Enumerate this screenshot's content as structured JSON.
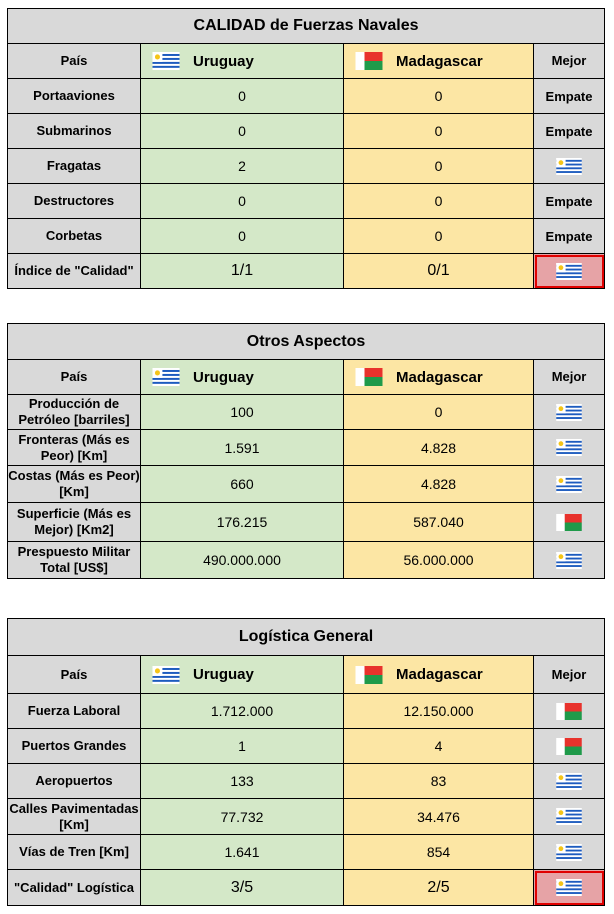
{
  "columns": {
    "country": "País",
    "uruguay": "Uruguay",
    "madagascar": "Madagascar",
    "best": "Mejor"
  },
  "flags": {
    "uruguay_icon": "uruguay-flag-icon",
    "madagascar_icon": "madagascar-flag-icon"
  },
  "colors": {
    "header": "#d9d9d9",
    "uruguay": "#d4e8c8",
    "madagascar": "#fce6a4",
    "highlight": "#e6a3a6",
    "highlight_border": "#e00000"
  },
  "tables": [
    {
      "title": "CALIDAD de Fuerzas Navales",
      "rows": [
        {
          "label": "Portaaviones",
          "uy": "0",
          "mg": "0",
          "best": "Empate"
        },
        {
          "label": "Submarinos",
          "uy": "0",
          "mg": "0",
          "best": "Empate"
        },
        {
          "label": "Fragatas",
          "uy": "2",
          "mg": "0",
          "best": "uruguay"
        },
        {
          "label": "Destructores",
          "uy": "0",
          "mg": "0",
          "best": "Empate"
        },
        {
          "label": "Corbetas",
          "uy": "0",
          "mg": "0",
          "best": "Empate"
        },
        {
          "label": "Índice de \"Calidad\"",
          "uy": "1/1",
          "mg": "0/1",
          "best": "uruguay"
        }
      ]
    },
    {
      "title": "Otros Aspectos",
      "rows": [
        {
          "label": "Producción de Petróleo [barriles]",
          "uy": "100",
          "mg": "0",
          "best": "uruguay"
        },
        {
          "label": "Fronteras (Más es Peor) [Km]",
          "uy": "1.591",
          "mg": "4.828",
          "best": "uruguay"
        },
        {
          "label": "Costas (Más es Peor) [Km]",
          "uy": "660",
          "mg": "4.828",
          "best": "uruguay"
        },
        {
          "label": "Superficie (Más es Mejor) [Km2]",
          "uy": "176.215",
          "mg": "587.040",
          "best": "madagascar"
        },
        {
          "label": "Prespuesto Militar Total [US$]",
          "uy": "490.000.000",
          "mg": "56.000.000",
          "best": "uruguay"
        }
      ]
    },
    {
      "title": "Logística General",
      "rows": [
        {
          "label": "Fuerza Laboral",
          "uy": "1.712.000",
          "mg": "12.150.000",
          "best": "madagascar"
        },
        {
          "label": "Puertos Grandes",
          "uy": "1",
          "mg": "4",
          "best": "madagascar"
        },
        {
          "label": "Aeropuertos",
          "uy": "133",
          "mg": "83",
          "best": "uruguay"
        },
        {
          "label": "Calles Pavimentadas [Km]",
          "uy": "77.732",
          "mg": "34.476",
          "best": "uruguay"
        },
        {
          "label": "Vías de Tren [Km]",
          "uy": "1.641",
          "mg": "854",
          "best": "uruguay"
        },
        {
          "label": "\"Calidad\" Logística",
          "uy": "3/5",
          "mg": "2/5",
          "best": "uruguay"
        }
      ]
    }
  ]
}
